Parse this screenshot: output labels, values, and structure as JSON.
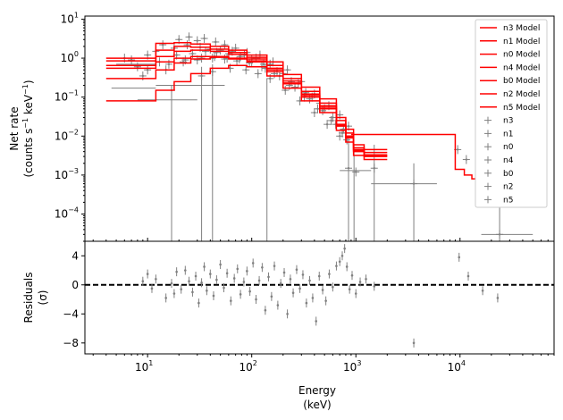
{
  "chart_data": [
    {
      "type": "line",
      "panel": "top",
      "ylabel": "Net rate\n(counts s⁻¹ keV⁻¹)",
      "xscale": "log",
      "yscale": "log",
      "xlim": [
        2.5,
        80000
      ],
      "ylim": [
        2e-05,
        12
      ],
      "x_ticks": [
        {
          "value": 10,
          "base": "10",
          "exp": "1"
        },
        {
          "value": 100,
          "base": "10",
          "exp": "2"
        },
        {
          "value": 1000,
          "base": "10",
          "exp": "3"
        },
        {
          "value": 10000,
          "base": "10",
          "exp": "4"
        }
      ],
      "y_ticks": [
        {
          "value": 10,
          "base": "10",
          "exp": "1"
        },
        {
          "value": 1,
          "base": "10",
          "exp": "0"
        },
        {
          "value": 0.1,
          "base": "10",
          "exp": "−1"
        },
        {
          "value": 0.01,
          "base": "10",
          "exp": "−2"
        },
        {
          "value": 0.001,
          "base": "10",
          "exp": "−3"
        },
        {
          "value": 0.0001,
          "base": "10",
          "exp": "−4"
        }
      ],
      "legend_position": "right",
      "series": [
        {
          "name": "n3 Model",
          "color": "#ff0000",
          "edges": [
            4,
            12,
            18,
            26,
            40,
            60,
            90,
            140,
            200,
            300,
            450,
            650,
            800,
            950,
            1200,
            2000
          ],
          "values": [
            0.85,
            2.4,
            2.5,
            2.3,
            2.0,
            1.6,
            1.2,
            0.8,
            0.38,
            0.18,
            0.09,
            0.03,
            0.015,
            0.006,
            0.0045
          ]
        },
        {
          "name": "n1 Model",
          "color": "#ff0000",
          "edges": [
            4,
            12,
            18,
            26,
            40,
            60,
            90,
            140,
            200,
            300,
            450,
            650,
            800,
            950,
            1200,
            2000
          ],
          "values": [
            1.0,
            1.6,
            2.0,
            1.9,
            1.7,
            1.4,
            1.05,
            0.65,
            0.3,
            0.14,
            0.07,
            0.025,
            0.012,
            0.005,
            0.0038
          ]
        },
        {
          "name": "n0 Model",
          "color": "#ff0000",
          "edges": [
            4,
            12,
            18,
            26,
            40,
            60,
            90,
            140,
            200,
            300,
            450,
            650,
            800,
            950,
            1200,
            2000
          ],
          "values": [
            0.65,
            1.1,
            1.5,
            1.6,
            1.5,
            1.25,
            0.95,
            0.55,
            0.26,
            0.12,
            0.06,
            0.02,
            0.01,
            0.0045,
            0.0033
          ]
        },
        {
          "name": "n4 Model",
          "color": "#ff0000",
          "edges": [
            4,
            12,
            18,
            26,
            40,
            60,
            90,
            140,
            200,
            300,
            450,
            650,
            800,
            950,
            1200,
            2000
          ],
          "values": [
            0.3,
            0.5,
            0.75,
            0.95,
            1.05,
            0.95,
            0.8,
            0.45,
            0.22,
            0.1,
            0.05,
            0.018,
            0.009,
            0.004,
            0.003
          ]
        },
        {
          "name": "b0 Model",
          "color": "#ff0000",
          "edges": [
            900,
            9000,
            11000,
            13000,
            16000,
            25000,
            52000
          ],
          "values": [
            0.011,
            0.0014,
            0.001,
            0.0008,
            0.0005,
            0.00028
          ]
        },
        {
          "name": "n2 Model",
          "color": "#ff0000",
          "edges": [
            4,
            12,
            18,
            26,
            40,
            60,
            90,
            140,
            200,
            300,
            450,
            650,
            800,
            950,
            1200,
            2000
          ],
          "values": [
            0.55,
            0.8,
            1.0,
            1.1,
            1.1,
            1.0,
            0.85,
            0.5,
            0.23,
            0.11,
            0.055,
            0.019,
            0.0095,
            0.0042,
            0.0031
          ]
        },
        {
          "name": "n5 Model",
          "color": "#ff0000",
          "edges": [
            4,
            12,
            18,
            26,
            40,
            60,
            90,
            140,
            200,
            300,
            450,
            650,
            800,
            950,
            1200,
            2000
          ],
          "values": [
            0.08,
            0.15,
            0.25,
            0.4,
            0.55,
            0.65,
            0.6,
            0.35,
            0.17,
            0.08,
            0.04,
            0.014,
            0.007,
            0.0032,
            0.0025
          ]
        }
      ],
      "data_series": [
        {
          "name": "n3",
          "color": "#808080",
          "points": [
            [
              6,
              1.0
            ],
            [
              10,
              1.2
            ],
            [
              14,
              2.2
            ],
            [
              20,
              3.0
            ],
            [
              25,
              3.5
            ],
            [
              30,
              2.8
            ],
            [
              35,
              3.2
            ],
            [
              45,
              2.6
            ],
            [
              55,
              2.2
            ],
            [
              70,
              1.8
            ],
            [
              90,
              1.4
            ],
            [
              120,
              1.2
            ],
            [
              160,
              0.8
            ],
            [
              220,
              0.5
            ],
            [
              300,
              0.25
            ],
            [
              400,
              0.12
            ],
            [
              550,
              0.06
            ],
            [
              700,
              0.035
            ],
            [
              850,
              0.018
            ]
          ]
        },
        {
          "name": "n1",
          "color": "#808080",
          "points": [
            [
              7,
              0.9
            ],
            [
              12,
              1.5
            ],
            [
              18,
              1.8
            ],
            [
              24,
              2.2
            ],
            [
              32,
              1.9
            ],
            [
              40,
              1.7
            ],
            [
              50,
              1.6
            ],
            [
              65,
              1.5
            ],
            [
              85,
              1.2
            ],
            [
              110,
              1.0
            ],
            [
              150,
              0.7
            ],
            [
              200,
              0.4
            ],
            [
              280,
              0.22
            ],
            [
              380,
              0.1
            ],
            [
              500,
              0.05
            ],
            [
              650,
              0.03
            ],
            [
              800,
              0.012
            ]
          ]
        },
        {
          "name": "n0",
          "color": "#808080",
          "points": [
            [
              8,
              0.6
            ],
            [
              13,
              0.8
            ],
            [
              19,
              1.2
            ],
            [
              27,
              1.3
            ],
            [
              36,
              1.5
            ],
            [
              46,
              1.4
            ],
            [
              60,
              1.3
            ],
            [
              78,
              1.1
            ],
            [
              100,
              0.95
            ],
            [
              130,
              0.7
            ],
            [
              175,
              0.45
            ],
            [
              240,
              0.25
            ],
            [
              330,
              0.13
            ],
            [
              450,
              0.07
            ],
            [
              600,
              0.03
            ],
            [
              760,
              0.015
            ],
            [
              1000,
              0.0012
            ]
          ]
        },
        {
          "name": "n4",
          "color": "#808080",
          "points": [
            [
              9,
              0.35
            ],
            [
              15,
              0.5
            ],
            [
              22,
              0.8
            ],
            [
              30,
              0.9
            ],
            [
              42,
              1.0
            ],
            [
              55,
              0.95
            ],
            [
              72,
              0.85
            ],
            [
              95,
              0.75
            ],
            [
              125,
              0.6
            ],
            [
              165,
              0.4
            ],
            [
              230,
              0.2
            ],
            [
              320,
              0.1
            ],
            [
              430,
              0.05
            ],
            [
              580,
              0.025
            ],
            [
              740,
              0.012
            ],
            [
              850,
              0.0015
            ]
          ]
        },
        {
          "name": "b0",
          "color": "#808080",
          "points": [
            [
              1500,
              0.0015
            ],
            [
              3600,
              0.0006
            ],
            [
              9500,
              0.0045
            ],
            [
              11500,
              0.0025
            ],
            [
              16000,
              0.0012
            ],
            [
              24000,
              3e-05
            ]
          ]
        },
        {
          "name": "n2",
          "color": "#808080",
          "points": [
            [
              10,
              0.5
            ],
            [
              16,
              0.7
            ],
            [
              23,
              0.9
            ],
            [
              33,
              1.0
            ],
            [
              44,
              1.1
            ],
            [
              58,
              1.0
            ],
            [
              76,
              0.95
            ],
            [
              100,
              0.8
            ],
            [
              135,
              0.55
            ],
            [
              185,
              0.35
            ],
            [
              260,
              0.18
            ],
            [
              360,
              0.09
            ],
            [
              480,
              0.045
            ],
            [
              640,
              0.02
            ],
            [
              820,
              0.008
            ]
          ]
        },
        {
          "name": "n5",
          "color": "#808080",
          "points": [
            [
              17,
              0.15
            ],
            [
              33,
              0.35
            ],
            [
              42,
              0.45
            ],
            [
              62,
              0.55
            ],
            [
              88,
              0.5
            ],
            [
              115,
              0.4
            ],
            [
              150,
              0.3
            ],
            [
              210,
              0.15
            ],
            [
              290,
              0.08
            ],
            [
              400,
              0.04
            ],
            [
              530,
              0.02
            ],
            [
              700,
              0.01
            ]
          ]
        }
      ],
      "vertical_error_bars": [
        {
          "x": 17,
          "ymin": 2e-05,
          "ymax": 0.2
        },
        {
          "x": 33,
          "ymin": 2e-05,
          "ymax": 0.6
        },
        {
          "x": 42,
          "ymin": 2e-05,
          "ymax": 0.7
        },
        {
          "x": 140,
          "ymin": 2e-05,
          "ymax": 0.3
        },
        {
          "x": 850,
          "ymin": 2e-05,
          "ymax": 0.01
        },
        {
          "x": 960,
          "ymin": 2e-05,
          "ymax": 0.006
        },
        {
          "x": 1500,
          "ymin": 2e-05,
          "ymax": 0.006
        },
        {
          "x": 3600,
          "ymin": 2e-05,
          "ymax": 0.002
        },
        {
          "x": 24000,
          "ymin": 2e-05,
          "ymax": 0.0003
        }
      ],
      "horizontal_error_bars": [
        {
          "y": 0.7,
          "xmin": 5,
          "xmax": 12
        },
        {
          "y": 0.17,
          "xmin": 4.5,
          "xmax": 12
        },
        {
          "y": 0.2,
          "xmin": 12,
          "xmax": 55
        },
        {
          "y": 0.085,
          "xmin": 8,
          "xmax": 30
        },
        {
          "y": 0.0013,
          "xmin": 700,
          "xmax": 1400
        },
        {
          "y": 0.0006,
          "xmin": 1400,
          "xmax": 6000
        },
        {
          "y": 3e-05,
          "xmin": 16000,
          "xmax": 50000
        }
      ]
    },
    {
      "type": "scatter",
      "panel": "bottom",
      "xlabel": "Energy\n(keV)",
      "ylabel": "Residuals\n(σ)",
      "xscale": "log",
      "xlim": [
        2.5,
        80000
      ],
      "ylim": [
        -9.5,
        6
      ],
      "y_ticks": [
        {
          "value": 4,
          "label": "4"
        },
        {
          "value": 0,
          "label": "0"
        },
        {
          "value": -4,
          "label": "−4"
        },
        {
          "value": -8,
          "label": "−8"
        }
      ],
      "reference_line": {
        "y": 0,
        "style": "dashed",
        "color": "#000000"
      },
      "points": [
        [
          9,
          0.5
        ],
        [
          10,
          1.5
        ],
        [
          11,
          -0.5
        ],
        [
          12,
          0.8
        ],
        [
          15,
          -1.8
        ],
        [
          17,
          0.2
        ],
        [
          18,
          -1.2
        ],
        [
          19,
          1.8
        ],
        [
          21,
          -0.6
        ],
        [
          23,
          2.0
        ],
        [
          25,
          0.5
        ],
        [
          27,
          -1.0
        ],
        [
          29,
          1.2
        ],
        [
          31,
          -2.5
        ],
        [
          33,
          0.3
        ],
        [
          35,
          2.5
        ],
        [
          37,
          -0.8
        ],
        [
          40,
          1.5
        ],
        [
          43,
          -1.5
        ],
        [
          46,
          0.7
        ],
        [
          50,
          2.8
        ],
        [
          54,
          -0.4
        ],
        [
          58,
          1.6
        ],
        [
          63,
          -2.2
        ],
        [
          68,
          0.9
        ],
        [
          73,
          2.2
        ],
        [
          78,
          -1.3
        ],
        [
          84,
          0.4
        ],
        [
          90,
          1.9
        ],
        [
          96,
          -0.9
        ],
        [
          103,
          3.0
        ],
        [
          110,
          -2.0
        ],
        [
          118,
          0.6
        ],
        [
          126,
          2.4
        ],
        [
          135,
          -3.5
        ],
        [
          145,
          1.1
        ],
        [
          155,
          -1.6
        ],
        [
          165,
          2.6
        ],
        [
          178,
          -2.8
        ],
        [
          190,
          0.2
        ],
        [
          205,
          1.7
        ],
        [
          220,
          -4.0
        ],
        [
          235,
          0.8
        ],
        [
          250,
          -1.1
        ],
        [
          270,
          2.1
        ],
        [
          290,
          -0.5
        ],
        [
          310,
          1.4
        ],
        [
          335,
          -2.5
        ],
        [
          360,
          0.6
        ],
        [
          385,
          -1.8
        ],
        [
          415,
          -5.0
        ],
        [
          445,
          1.2
        ],
        [
          480,
          -0.7
        ],
        [
          515,
          -2.2
        ],
        [
          555,
          1.5
        ],
        [
          600,
          -0.3
        ],
        [
          650,
          2.6
        ],
        [
          700,
          3.2
        ],
        [
          740,
          4.0
        ],
        [
          780,
          5.0
        ],
        [
          820,
          2.5
        ],
        [
          870,
          -0.6
        ],
        [
          920,
          1.3
        ],
        [
          1000,
          -1.2
        ],
        [
          1100,
          0.4
        ],
        [
          1250,
          0.8
        ],
        [
          1500,
          -0.2
        ],
        [
          3600,
          -8.0
        ],
        [
          9800,
          3.8
        ],
        [
          12000,
          1.2
        ],
        [
          16500,
          -0.8
        ],
        [
          23000,
          -1.8
        ]
      ]
    }
  ]
}
